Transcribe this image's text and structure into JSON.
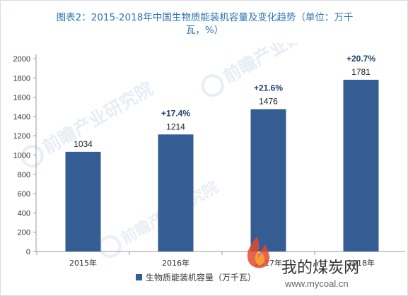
{
  "chart_data": {
    "type": "bar",
    "title": "图表2：2015-2018年中国生物质能装机容量及变化趋势（单位：万千瓦，%）",
    "title_lines": [
      "图表2：2015-2018年中国生物质能装机容量及变化趋势（单位：万千",
      "瓦，%）"
    ],
    "categories": [
      "2015年",
      "2016年",
      "2017年",
      "2018年"
    ],
    "series": [
      {
        "name": "生物质能装机容量（万千瓦）",
        "values": [
          1034,
          1214,
          1476,
          1781
        ],
        "value_labels": [
          "1034",
          "1214",
          "1476",
          "1781"
        ]
      }
    ],
    "growth_labels": [
      "",
      "+17.4%",
      "+21.6%",
      "+20.7%"
    ],
    "ylim": [
      0,
      2000
    ],
    "yticks": [
      0,
      200,
      400,
      600,
      800,
      1000,
      1200,
      1400,
      1600,
      1800,
      2000
    ],
    "grid": false,
    "legend_position": "bottom-center",
    "colors": {
      "bar": "#345d93",
      "title": "#2a74b3",
      "growth_label": "#1f3f6d"
    }
  },
  "watermarks": {
    "brand": "前瞻产业研究院",
    "site_name": "我的煤炭网",
    "site_url": "www.mycoal.cn",
    "icons": [
      "qianzhan-logo-icon",
      "flame-logo-icon"
    ]
  }
}
